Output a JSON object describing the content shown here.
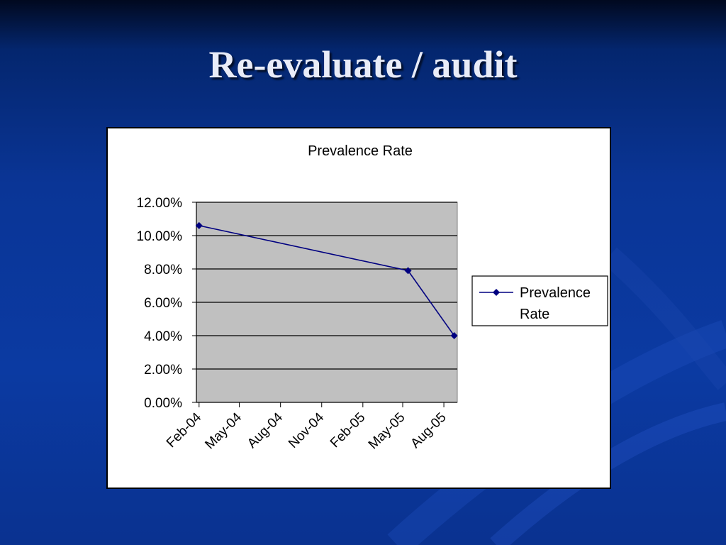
{
  "slide": {
    "title": "Re-evaluate / audit"
  },
  "chart_data": {
    "type": "line",
    "title": "Prevalence Rate",
    "xlabel": "",
    "ylabel": "",
    "x_ticks": [
      "Feb-04",
      "May-04",
      "Aug-04",
      "Nov-04",
      "Feb-05",
      "May-05",
      "Aug-05"
    ],
    "x_tick_dates": [
      "2004-02-01",
      "2004-05-01",
      "2004-08-01",
      "2004-11-01",
      "2005-02-01",
      "2005-05-01",
      "2005-08-01"
    ],
    "xlim": [
      "2004-01-26",
      "2005-08-31"
    ],
    "y_ticks": [
      "0.00%",
      "2.00%",
      "4.00%",
      "6.00%",
      "8.00%",
      "10.00%",
      "12.00%"
    ],
    "y_tick_values": [
      0,
      0.02,
      0.04,
      0.06,
      0.08,
      0.1,
      0.12
    ],
    "ylim": [
      0,
      0.12
    ],
    "grid": true,
    "legend_position": "right",
    "series": [
      {
        "name": "Prevalence Rate",
        "color": "#000080",
        "marker": "diamond",
        "points": [
          {
            "x": "2004-02-01",
            "y": 0.106
          },
          {
            "x": "2005-05-13",
            "y": 0.079
          },
          {
            "x": "2005-08-24",
            "y": 0.04
          }
        ]
      }
    ],
    "plot_background": "#c0c0c0"
  }
}
